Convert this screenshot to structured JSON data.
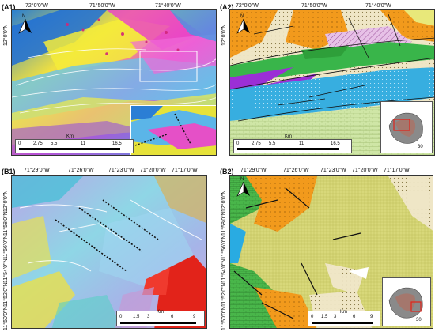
{
  "panels": {
    "a1": {
      "label": "(A1)",
      "top_ticks": [
        "72°0'0\"W",
        "71°50'0\"W",
        "71°40'0\"W"
      ],
      "left_ticks": [
        "12°0'0\"N"
      ],
      "scale": {
        "values": [
          "0",
          "2.75",
          "5.5",
          "11",
          "16.5"
        ],
        "unit": "Km"
      }
    },
    "a2": {
      "label": "(A2)",
      "top_ticks": [
        "72°0'0\"W",
        "71°50'0\"W",
        "71°40'0\"W"
      ],
      "left_ticks": [
        "12°0'0\"N"
      ],
      "scale": {
        "values": [
          "0",
          "2.75",
          "5.5",
          "11",
          "16.5"
        ],
        "unit": "Km"
      },
      "inset_scale": "30"
    },
    "b1": {
      "label": "(B1)",
      "top_ticks": [
        "71°29'0\"W",
        "71°26'0\"W",
        "71°23'0\"W",
        "71°20'0\"W",
        "71°17'0\"W"
      ],
      "left_ticks": [
        "12°0'0\"N",
        "11°58'0\"N",
        "11°56'0\"N",
        "11°54'0\"N",
        "11°52'0\"N",
        "11°50'0\"N"
      ],
      "scale": {
        "values": [
          "0",
          "1.5",
          "3",
          "6",
          "9"
        ],
        "unit": "Km"
      }
    },
    "b2": {
      "label": "(B2)",
      "top_ticks": [
        "71°29'0\"W",
        "71°26'0\"W",
        "71°23'0\"W",
        "71°20'0\"W",
        "71°17'0\"W"
      ],
      "left_ticks": [
        "12°0'0\"N",
        "11°58'0\"N",
        "11°56'0\"N",
        "11°54'0\"N",
        "11°52'0\"N",
        "11°50'0\"N"
      ],
      "scale": {
        "values": [
          "0",
          "1.5",
          "3",
          "6",
          "9"
        ],
        "unit": "Km"
      },
      "inset_scale": "30"
    }
  },
  "north_label": "N",
  "colors": {
    "geo_yellow": "#e8e87a",
    "geo_orange": "#f29a1c",
    "geo_green": "#39b54a",
    "geo_cyan": "#29abe2",
    "geo_purple": "#9b2fd6",
    "geo_pink_hatch": "#e7c1e7",
    "geo_beige": "#efe6c6",
    "alert_red": "#e2231a"
  }
}
